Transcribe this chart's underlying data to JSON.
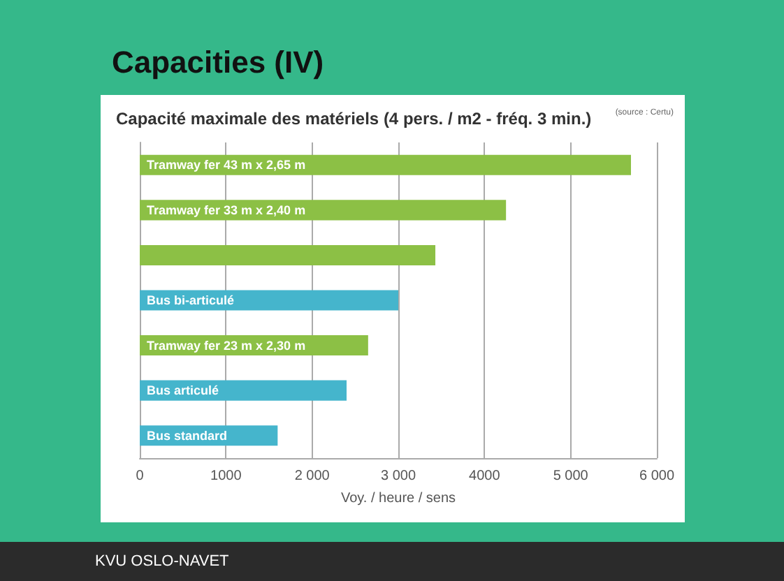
{
  "chart_data": {
    "type": "bar",
    "orientation": "horizontal",
    "title": "Capacities (IV)",
    "subtitle": "Capacité maximale des matériels (4 pers. / m2 - fréq. 3 min.)",
    "categories": [
      "Tramway fer 43 m x 2,65 m",
      "Tramway fer 33 m x 2,40 m",
      null,
      "Bus bi-articulé",
      "Tramway fer 23 m x 2,30 m",
      "Bus articulé",
      "Bus standard"
    ],
    "values": [
      5700,
      4250,
      3430,
      3000,
      2650,
      2400,
      1600
    ],
    "colors": [
      "#8cc045",
      "#8cc045",
      "#8cc045",
      "#45b5cc",
      "#8cc045",
      "#45b5cc",
      "#45b5cc"
    ],
    "xlabel": "Voy. / heure / sens",
    "xlim": [
      0,
      6000
    ],
    "xticks": [
      0,
      1000,
      {
        "value": 2000,
        "label": "2 000"
      },
      {
        "value": 3000,
        "label": "3 000"
      },
      4000,
      {
        "value": 5000,
        "label": "5 000"
      },
      {
        "value": 6000,
        "label": "6 000"
      }
    ],
    "grid": "x",
    "tick_labels": "x",
    "annotations": [
      "(source : Certu)",
      "KVU OSLO-NAVET"
    ]
  }
}
